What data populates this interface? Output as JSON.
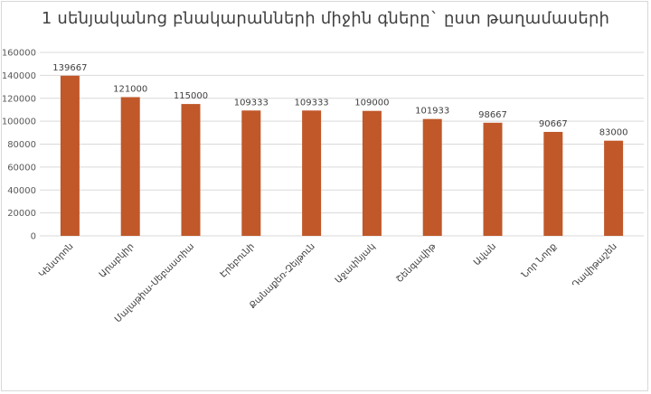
{
  "chart_data": {
    "type": "bar",
    "title": "1 սենյականոց բնակարանների միջին գները` ըստ թաղամասերի",
    "categories": [
      "Կենտրոն",
      "Արաբկիր",
      "Մալաթիա-Սեբաստիա",
      "Էրեբունի",
      "Քանաքեռ-Զեյթուն",
      "Աջափնյակ",
      "Շենգավիթ",
      "Ավան",
      "Նոր Նորք",
      "Դավիթաշեն"
    ],
    "values": [
      139667,
      121000,
      115000,
      109333,
      109333,
      109000,
      101933,
      98667,
      90667,
      83000
    ],
    "ylim": [
      0,
      160000
    ],
    "yticks": [
      0,
      20000,
      40000,
      60000,
      80000,
      100000,
      120000,
      140000,
      160000
    ],
    "xlabel": "",
    "ylabel": "",
    "grid": true,
    "legend": "none",
    "bar_color": "#c0582a",
    "grid_color": "#d9d9d9"
  }
}
